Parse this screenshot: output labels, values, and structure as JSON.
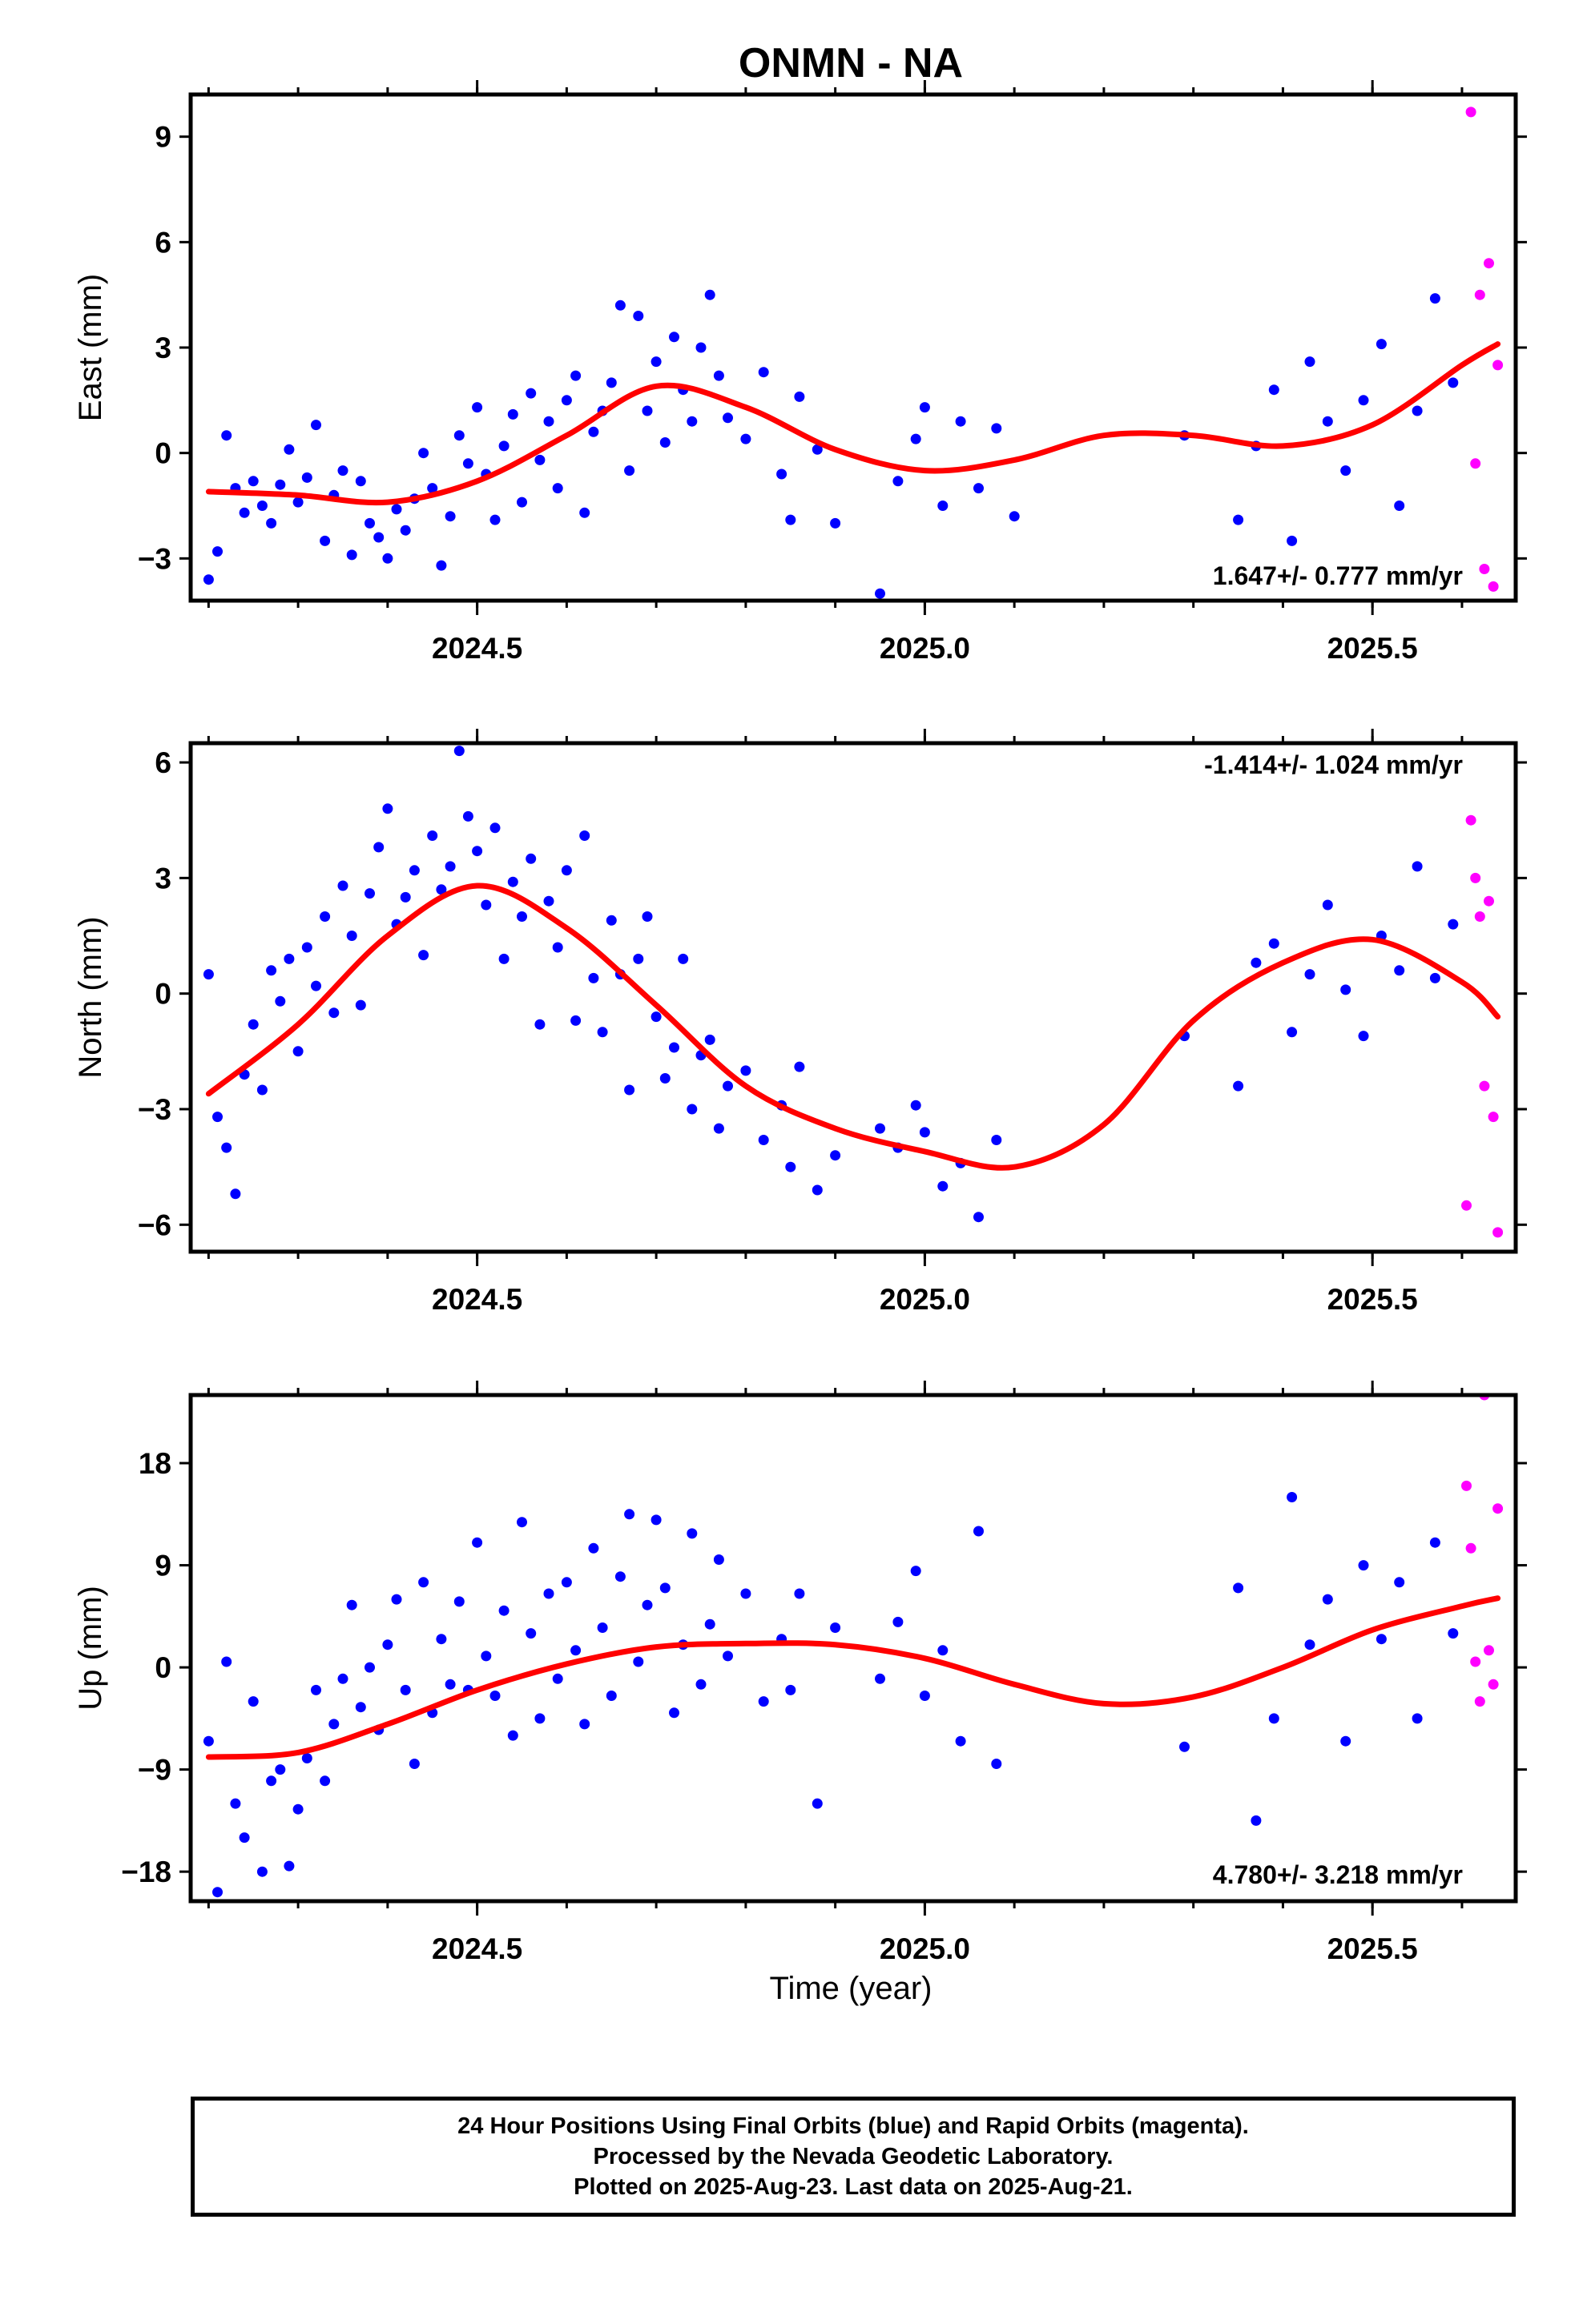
{
  "title": "ONMN - NA",
  "xlabel": "Time (year)",
  "caption": [
    "24 Hour Positions Using Final Orbits (blue) and Rapid Orbits (magenta).",
    "Processed by the Nevada Geodetic Laboratory.",
    "Plotted on 2025-Aug-23. Last data on 2025-Aug-21."
  ],
  "colors": {
    "final": "#0000ff",
    "rapid": "#ff00ff",
    "fit": "#ff0000"
  },
  "chart_data": [
    {
      "type": "scatter",
      "name": "east",
      "ylabel": "East (mm)",
      "xlim": [
        2024.18,
        2025.66
      ],
      "ylim": [
        -4.2,
        10.2
      ],
      "xticks": [
        2024.5,
        2025.0,
        2025.5
      ],
      "xtick_labels": [
        "2024.5",
        "2025.0",
        "2025.5"
      ],
      "yticks": [
        -3,
        0,
        3,
        6,
        9
      ],
      "ytick_labels": [
        "−3",
        "0",
        "3",
        "6",
        "9"
      ],
      "rate_label": "1.647+/- 0.777 mm/yr",
      "fit": {
        "x": [
          2024.2,
          2024.3,
          2024.4,
          2024.5,
          2024.6,
          2024.7,
          2024.8,
          2024.9,
          2025.0,
          2025.1,
          2025.2,
          2025.3,
          2025.4,
          2025.5,
          2025.6,
          2025.64
        ],
        "y": [
          -1.1,
          -1.2,
          -1.4,
          -0.8,
          0.5,
          1.9,
          1.3,
          0.1,
          -0.5,
          -0.2,
          0.5,
          0.5,
          0.2,
          0.8,
          2.5,
          3.1
        ]
      },
      "final": {
        "x": [
          2024.2,
          2024.21,
          2024.22,
          2024.23,
          2024.24,
          2024.25,
          2024.26,
          2024.27,
          2024.28,
          2024.29,
          2024.3,
          2024.31,
          2024.32,
          2024.33,
          2024.34,
          2024.35,
          2024.36,
          2024.37,
          2024.38,
          2024.39,
          2024.4,
          2024.41,
          2024.42,
          2024.43,
          2024.44,
          2024.45,
          2024.46,
          2024.47,
          2024.48,
          2024.49,
          2024.5,
          2024.51,
          2024.52,
          2024.53,
          2024.54,
          2024.55,
          2024.56,
          2024.57,
          2024.58,
          2024.59,
          2024.6,
          2024.61,
          2024.62,
          2024.63,
          2024.64,
          2024.65,
          2024.66,
          2024.67,
          2024.68,
          2024.69,
          2024.7,
          2024.71,
          2024.72,
          2024.73,
          2024.74,
          2024.75,
          2024.76,
          2024.77,
          2024.78,
          2024.8,
          2024.82,
          2024.84,
          2024.85,
          2024.86,
          2024.88,
          2024.9,
          2024.95,
          2024.97,
          2024.99,
          2025.0,
          2025.02,
          2025.04,
          2025.06,
          2025.08,
          2025.1,
          2025.29,
          2025.35,
          2025.37,
          2025.39,
          2025.41,
          2025.43,
          2025.45,
          2025.47,
          2025.49,
          2025.51,
          2025.53,
          2025.55,
          2025.57,
          2025.59
        ],
        "y": [
          -3.6,
          -2.8,
          0.5,
          -1.0,
          -1.7,
          -0.8,
          -1.5,
          -2.0,
          -0.9,
          0.1,
          -1.4,
          -0.7,
          0.8,
          -2.5,
          -1.2,
          -0.5,
          -2.9,
          -0.8,
          -2.0,
          -2.4,
          -3.0,
          -1.6,
          -2.2,
          -1.3,
          0.0,
          -1.0,
          -3.2,
          -1.8,
          0.5,
          -0.3,
          1.3,
          -0.6,
          -1.9,
          0.2,
          1.1,
          -1.4,
          1.7,
          -0.2,
          0.9,
          -1.0,
          1.5,
          2.2,
          -1.7,
          0.6,
          1.2,
          2.0,
          4.2,
          -0.5,
          3.9,
          1.2,
          2.6,
          0.3,
          3.3,
          1.8,
          0.9,
          3.0,
          4.5,
          2.2,
          1.0,
          0.4,
          2.3,
          -0.6,
          -1.9,
          1.6,
          0.1,
          -2.0,
          -4.0,
          -0.8,
          0.4,
          1.3,
          -1.5,
          0.9,
          -1.0,
          0.7,
          -1.8,
          0.5,
          -1.9,
          0.2,
          1.8,
          -2.5,
          2.6,
          0.9,
          -0.5,
          1.5,
          3.1,
          -1.5,
          1.2,
          4.4,
          2.0
        ],
        "radius": 6.5
      },
      "rapid": {
        "x": [
          2025.61,
          2025.615,
          2025.62,
          2025.625,
          2025.63,
          2025.635,
          2025.64
        ],
        "y": [
          9.7,
          -0.3,
          4.5,
          -3.3,
          5.4,
          -3.8,
          2.5
        ],
        "radius": 6.5
      }
    },
    {
      "type": "scatter",
      "name": "north",
      "ylabel": "North (mm)",
      "xlim": [
        2024.18,
        2025.66
      ],
      "ylim": [
        -6.7,
        6.5
      ],
      "xticks": [
        2024.5,
        2025.0,
        2025.5
      ],
      "xtick_labels": [
        "2024.5",
        "2025.0",
        "2025.5"
      ],
      "yticks": [
        -6,
        -3,
        0,
        3,
        6
      ],
      "ytick_labels": [
        "−6",
        "−3",
        "0",
        "3",
        "6"
      ],
      "rate_label": "-1.414+/- 1.024 mm/yr",
      "fit": {
        "x": [
          2024.2,
          2024.3,
          2024.4,
          2024.5,
          2024.6,
          2024.7,
          2024.8,
          2024.9,
          2025.0,
          2025.1,
          2025.2,
          2025.3,
          2025.4,
          2025.5,
          2025.6,
          2025.64
        ],
        "y": [
          -2.6,
          -0.8,
          1.5,
          2.8,
          1.7,
          -0.3,
          -2.4,
          -3.5,
          -4.1,
          -4.5,
          -3.4,
          -0.7,
          0.8,
          1.4,
          0.3,
          -0.6
        ]
      },
      "final": {
        "x": [
          2024.2,
          2024.21,
          2024.22,
          2024.23,
          2024.24,
          2024.25,
          2024.26,
          2024.27,
          2024.28,
          2024.29,
          2024.3,
          2024.31,
          2024.32,
          2024.33,
          2024.34,
          2024.35,
          2024.36,
          2024.37,
          2024.38,
          2024.39,
          2024.4,
          2024.41,
          2024.42,
          2024.43,
          2024.44,
          2024.45,
          2024.46,
          2024.47,
          2024.48,
          2024.49,
          2024.5,
          2024.51,
          2024.52,
          2024.53,
          2024.54,
          2024.55,
          2024.56,
          2024.57,
          2024.58,
          2024.59,
          2024.6,
          2024.61,
          2024.62,
          2024.63,
          2024.64,
          2024.65,
          2024.66,
          2024.67,
          2024.68,
          2024.69,
          2024.7,
          2024.71,
          2024.72,
          2024.73,
          2024.74,
          2024.75,
          2024.76,
          2024.77,
          2024.78,
          2024.8,
          2024.82,
          2024.84,
          2024.85,
          2024.86,
          2024.88,
          2024.9,
          2024.95,
          2024.97,
          2024.99,
          2025.0,
          2025.02,
          2025.04,
          2025.06,
          2025.08,
          2025.29,
          2025.35,
          2025.37,
          2025.39,
          2025.41,
          2025.43,
          2025.45,
          2025.47,
          2025.49,
          2025.51,
          2025.53,
          2025.55,
          2025.57,
          2025.59
        ],
        "y": [
          0.5,
          -3.2,
          -4.0,
          -5.2,
          -2.1,
          -0.8,
          -2.5,
          0.6,
          -0.2,
          0.9,
          -1.5,
          1.2,
          0.2,
          2.0,
          -0.5,
          2.8,
          1.5,
          -0.3,
          2.6,
          3.8,
          4.8,
          1.8,
          2.5,
          3.2,
          1.0,
          4.1,
          2.7,
          3.3,
          6.3,
          4.6,
          3.7,
          2.3,
          4.3,
          0.9,
          2.9,
          2.0,
          3.5,
          -0.8,
          2.4,
          1.2,
          3.2,
          -0.7,
          4.1,
          0.4,
          -1.0,
          1.9,
          0.5,
          -2.5,
          0.9,
          2.0,
          -0.6,
          -2.2,
          -1.4,
          0.9,
          -3.0,
          -1.6,
          -1.2,
          -3.5,
          -2.4,
          -2.0,
          -3.8,
          -2.9,
          -4.5,
          -1.9,
          -5.1,
          -4.2,
          -3.5,
          -4.0,
          -2.9,
          -3.6,
          -5.0,
          -4.4,
          -5.8,
          -3.8,
          -1.1,
          -2.4,
          0.8,
          1.3,
          -1.0,
          0.5,
          2.3,
          0.1,
          -1.1,
          1.5,
          0.6,
          3.3,
          0.4,
          1.8
        ],
        "radius": 6.5
      },
      "rapid": {
        "x": [
          2025.605,
          2025.61,
          2025.615,
          2025.62,
          2025.625,
          2025.63,
          2025.635,
          2025.64
        ],
        "y": [
          -5.5,
          4.5,
          3.0,
          2.0,
          -2.4,
          2.4,
          -3.2,
          -6.2
        ],
        "radius": 6.5
      }
    },
    {
      "type": "scatter",
      "name": "up",
      "ylabel": "Up (mm)",
      "xlim": [
        2024.18,
        2025.66
      ],
      "ylim": [
        -20.6,
        24.0
      ],
      "xticks": [
        2024.5,
        2025.0,
        2025.5
      ],
      "xtick_labels": [
        "2024.5",
        "2025.0",
        "2025.5"
      ],
      "yticks": [
        -18,
        -9,
        0,
        9,
        18
      ],
      "ytick_labels": [
        "−18",
        "−9",
        "0",
        "9",
        "18"
      ],
      "rate_label": "4.780+/- 3.218 mm/yr",
      "fit": {
        "x": [
          2024.2,
          2024.3,
          2024.4,
          2024.5,
          2024.6,
          2024.7,
          2024.8,
          2024.9,
          2025.0,
          2025.1,
          2025.2,
          2025.3,
          2025.4,
          2025.5,
          2025.6,
          2025.64
        ],
        "y": [
          -7.9,
          -7.5,
          -5.0,
          -2.0,
          0.3,
          1.8,
          2.1,
          2.0,
          0.8,
          -1.5,
          -3.2,
          -2.6,
          0.0,
          3.3,
          5.4,
          6.1
        ]
      },
      "final": {
        "x": [
          2024.2,
          2024.21,
          2024.22,
          2024.23,
          2024.24,
          2024.25,
          2024.26,
          2024.27,
          2024.28,
          2024.29,
          2024.3,
          2024.31,
          2024.32,
          2024.33,
          2024.34,
          2024.35,
          2024.36,
          2024.37,
          2024.38,
          2024.39,
          2024.4,
          2024.41,
          2024.42,
          2024.43,
          2024.44,
          2024.45,
          2024.46,
          2024.47,
          2024.48,
          2024.49,
          2024.5,
          2024.51,
          2024.52,
          2024.53,
          2024.54,
          2024.55,
          2024.56,
          2024.57,
          2024.58,
          2024.59,
          2024.6,
          2024.61,
          2024.62,
          2024.63,
          2024.64,
          2024.65,
          2024.66,
          2024.67,
          2024.68,
          2024.69,
          2024.7,
          2024.71,
          2024.72,
          2024.73,
          2024.74,
          2024.75,
          2024.76,
          2024.77,
          2024.78,
          2024.8,
          2024.82,
          2024.84,
          2024.85,
          2024.86,
          2024.88,
          2024.9,
          2024.95,
          2024.97,
          2024.99,
          2025.0,
          2025.02,
          2025.04,
          2025.06,
          2025.08,
          2025.29,
          2025.35,
          2025.37,
          2025.39,
          2025.41,
          2025.43,
          2025.45,
          2025.47,
          2025.49,
          2025.51,
          2025.53,
          2025.55,
          2025.57,
          2025.59
        ],
        "y": [
          -6.5,
          -19.8,
          0.5,
          -12.0,
          -15.0,
          -3.0,
          -18.0,
          -10.0,
          -9.0,
          -17.5,
          -12.5,
          -8.0,
          -2.0,
          -10.0,
          -5.0,
          -1.0,
          5.5,
          -3.5,
          0.0,
          -5.5,
          2.0,
          6.0,
          -2.0,
          -8.5,
          7.5,
          -4.0,
          2.5,
          -1.5,
          5.8,
          -2.0,
          11.0,
          1.0,
          -2.5,
          5.0,
          -6.0,
          12.8,
          3.0,
          -4.5,
          6.5,
          -1.0,
          7.5,
          1.5,
          -5.0,
          10.5,
          3.5,
          -2.5,
          8.0,
          13.5,
          0.5,
          5.5,
          13.0,
          7.0,
          -4.0,
          2.0,
          11.8,
          -1.5,
          3.8,
          9.5,
          1.0,
          6.5,
          -3.0,
          2.5,
          -2.0,
          6.5,
          -12.0,
          3.5,
          -1.0,
          4.0,
          8.5,
          -2.5,
          1.5,
          -6.5,
          12.0,
          -8.5,
          -7.0,
          7.0,
          -13.5,
          -4.5,
          15.0,
          2.0,
          6.0,
          -6.5,
          9.0,
          2.5,
          7.5,
          -4.5,
          11.0,
          3.0
        ],
        "radius": 6.5
      },
      "rapid": {
        "x": [
          2025.605,
          2025.61,
          2025.615,
          2025.62,
          2025.625,
          2025.63,
          2025.635,
          2025.64
        ],
        "y": [
          16.0,
          10.5,
          0.5,
          -3.0,
          24.0,
          1.5,
          -1.5,
          14.0
        ],
        "radius": 6.5
      }
    }
  ]
}
